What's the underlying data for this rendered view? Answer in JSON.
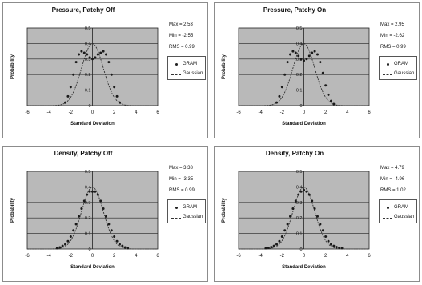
{
  "chart_data": [
    {
      "type": "scatter",
      "title": "Pressure, Patchy Off",
      "xlabel": "Standard Deviation",
      "ylabel": "Probability",
      "xlim": [
        -6,
        6
      ],
      "ylim": [
        0,
        0.5
      ],
      "xticks": [
        "-6",
        "-4",
        "-2",
        "0",
        "2",
        "4",
        "6"
      ],
      "yticks": [
        "0",
        "0.1",
        "0.2",
        "0.3",
        "0.4",
        "0.5"
      ],
      "grid": true,
      "legend": "right",
      "stats": [
        "Max = 2.53",
        "Min = -2.55",
        "RMS = 0.99"
      ],
      "series": [
        {
          "name": "GRAM",
          "style": "markers",
          "x": [
            -2.5,
            -2.25,
            -2,
            -1.75,
            -1.5,
            -1.25,
            -1,
            -0.75,
            -0.5,
            -0.25,
            0,
            0.25,
            0.5,
            0.75,
            1,
            1.25,
            1.5,
            1.75,
            2,
            2.25,
            2.5
          ],
          "y": [
            0.02,
            0.06,
            0.12,
            0.2,
            0.28,
            0.33,
            0.35,
            0.34,
            0.33,
            0.31,
            0.3,
            0.31,
            0.33,
            0.34,
            0.35,
            0.33,
            0.28,
            0.2,
            0.12,
            0.06,
            0.02
          ]
        },
        {
          "name": "Gaussian",
          "style": "dashed",
          "function": "standard normal"
        }
      ]
    },
    {
      "type": "scatter",
      "title": "Pressure, Patchy On",
      "xlabel": "Standard Deviation",
      "ylabel": "Probability",
      "xlim": [
        -6,
        6
      ],
      "ylim": [
        0,
        0.5
      ],
      "xticks": [
        "-6",
        "-4",
        "-2",
        "0",
        "2",
        "4",
        "6"
      ],
      "yticks": [
        "0",
        "0.1",
        "0.2",
        "0.3",
        "0.4",
        "0.5"
      ],
      "grid": true,
      "legend": "right",
      "stats": [
        "Max = 2.95",
        "Min = -2.62",
        "RMS = 0.99"
      ],
      "series": [
        {
          "name": "GRAM",
          "style": "markers",
          "x": [
            -2.5,
            -2.25,
            -2,
            -1.75,
            -1.5,
            -1.25,
            -1,
            -0.75,
            -0.5,
            -0.25,
            0,
            0.25,
            0.5,
            0.75,
            1,
            1.25,
            1.5,
            1.75,
            2,
            2.25,
            2.5,
            2.75
          ],
          "y": [
            0.02,
            0.06,
            0.12,
            0.2,
            0.28,
            0.33,
            0.35,
            0.34,
            0.32,
            0.3,
            0.29,
            0.3,
            0.32,
            0.34,
            0.35,
            0.33,
            0.28,
            0.21,
            0.13,
            0.07,
            0.03,
            0.01
          ]
        },
        {
          "name": "Gaussian",
          "style": "dashed",
          "function": "standard normal"
        }
      ]
    },
    {
      "type": "scatter",
      "title": "Density, Patchy Off",
      "xlabel": "Standard Deviation",
      "ylabel": "Probability",
      "xlim": [
        -6,
        6
      ],
      "ylim": [
        0,
        0.5
      ],
      "xticks": [
        "-6",
        "-4",
        "-2",
        "0",
        "2",
        "4",
        "6"
      ],
      "yticks": [
        "0",
        "0.1",
        "0.2",
        "0.3",
        "0.4",
        "0.5"
      ],
      "grid": true,
      "legend": "right",
      "stats": [
        "Max = 3.38",
        "Min = -3.35",
        "RMS = 0.99"
      ],
      "series": [
        {
          "name": "GRAM",
          "style": "markers",
          "x": [
            -3.25,
            -3,
            -2.75,
            -2.5,
            -2.25,
            -2,
            -1.75,
            -1.5,
            -1.25,
            -1,
            -0.75,
            -0.5,
            -0.25,
            0,
            0.25,
            0.5,
            0.75,
            1,
            1.25,
            1.5,
            1.75,
            2,
            2.25,
            2.5,
            2.75,
            3,
            3.25
          ],
          "y": [
            0.005,
            0.01,
            0.02,
            0.03,
            0.05,
            0.08,
            0.12,
            0.16,
            0.21,
            0.26,
            0.31,
            0.35,
            0.37,
            0.37,
            0.37,
            0.35,
            0.31,
            0.26,
            0.21,
            0.16,
            0.12,
            0.08,
            0.05,
            0.03,
            0.02,
            0.01,
            0.005
          ]
        },
        {
          "name": "Gaussian",
          "style": "dashed",
          "function": "standard normal"
        }
      ]
    },
    {
      "type": "scatter",
      "title": "Density, Patchy On",
      "xlabel": "Standard Deviation",
      "ylabel": "Probability",
      "xlim": [
        -6,
        6
      ],
      "ylim": [
        0,
        0.5
      ],
      "xticks": [
        "-6",
        "-4",
        "-2",
        "0",
        "2",
        "4",
        "6"
      ],
      "yticks": [
        "0",
        "0.1",
        "0.2",
        "0.3",
        "0.4",
        "0.5"
      ],
      "grid": true,
      "legend": "right",
      "stats": [
        "Max = 4.79",
        "Min = -4.96",
        "RMS = 1.02"
      ],
      "series": [
        {
          "name": "GRAM",
          "style": "markers",
          "x": [
            -3.5,
            -3.25,
            -3,
            -2.75,
            -2.5,
            -2.25,
            -2,
            -1.75,
            -1.5,
            -1.25,
            -1,
            -0.75,
            -0.5,
            -0.25,
            0,
            0.25,
            0.5,
            0.75,
            1,
            1.25,
            1.5,
            1.75,
            2,
            2.25,
            2.5,
            2.75,
            3,
            3.25,
            3.5
          ],
          "y": [
            0.005,
            0.008,
            0.012,
            0.02,
            0.03,
            0.05,
            0.08,
            0.12,
            0.16,
            0.21,
            0.26,
            0.31,
            0.35,
            0.37,
            0.38,
            0.37,
            0.35,
            0.31,
            0.26,
            0.21,
            0.16,
            0.12,
            0.08,
            0.05,
            0.03,
            0.02,
            0.012,
            0.008,
            0.005
          ]
        },
        {
          "name": "Gaussian",
          "style": "dashed",
          "function": "standard normal"
        }
      ]
    }
  ],
  "colors": {
    "plot_area": "#b9b9b9",
    "gridline": "#222222",
    "marker": "#1a1a1a",
    "gaussian_line": "#333333",
    "panel_border": "#8c8c8c"
  },
  "icons": {
    "gram_marker": "filled-dot",
    "gaussian_marker": "dashed-line"
  }
}
